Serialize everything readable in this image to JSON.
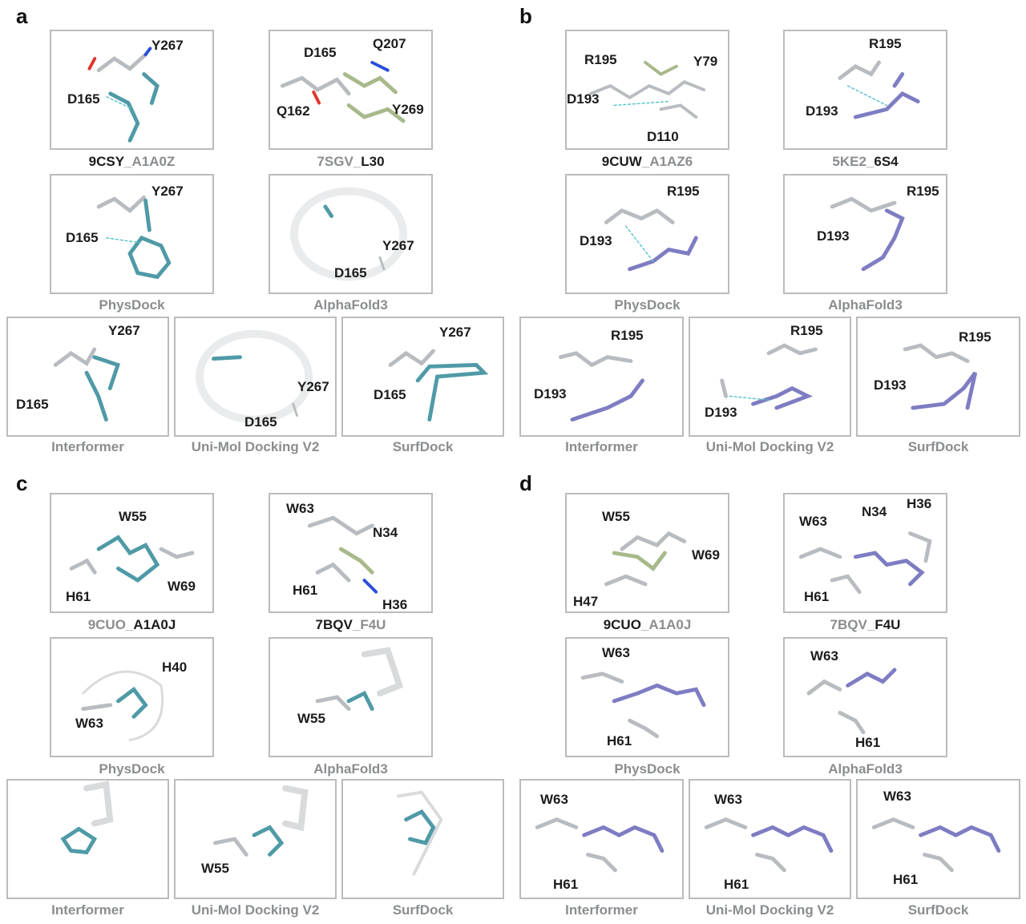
{
  "labels": {
    "a": "a",
    "b": "b",
    "c": "c",
    "d": "d"
  },
  "colors": {
    "teal": "#4f9aa6",
    "violet": "#7e7cc2",
    "olive": "#a8b98a",
    "grey_stick": "#9aa0a5",
    "blue_n": "#2a4ddb",
    "red_o": "#e0362c"
  },
  "a": {
    "p1": {
      "cap_a": "9CSY",
      "cap_b": "A1A0Z",
      "r": [
        "Y267",
        "D165"
      ]
    },
    "p2": {
      "cap_a": "7SGV",
      "cap_b": "L30",
      "r": [
        "D165",
        "Q207",
        "Q162",
        "Y269"
      ]
    },
    "p3": {
      "cap": "PhysDock",
      "r": [
        "Y267",
        "D165"
      ]
    },
    "p4": {
      "cap": "AlphaFold3",
      "r": [
        "Y267",
        "D165"
      ]
    },
    "p5": {
      "cap": "Interformer",
      "r": [
        "Y267",
        "D165"
      ]
    },
    "p6": {
      "cap": "Uni-Mol Docking V2",
      "r": [
        "Y267",
        "D165"
      ]
    },
    "p7": {
      "cap": "SurfDock",
      "r": [
        "Y267",
        "D165"
      ]
    }
  },
  "b": {
    "p1": {
      "cap_a": "9CUW",
      "cap_b": "A1AZ6",
      "r": [
        "R195",
        "Y79",
        "D193",
        "D110"
      ]
    },
    "p2": {
      "cap_a": "5KE2",
      "cap_b": "6S4",
      "r": [
        "R195",
        "D193"
      ]
    },
    "p3": {
      "cap": "PhysDock",
      "r": [
        "R195",
        "D193"
      ]
    },
    "p4": {
      "cap": "AlphaFold3",
      "r": [
        "R195",
        "D193"
      ]
    },
    "p5": {
      "cap": "Interformer",
      "r": [
        "R195",
        "D193"
      ]
    },
    "p6": {
      "cap": "Uni-Mol Docking V2",
      "r": [
        "R195",
        "D193"
      ]
    },
    "p7": {
      "cap": "SurfDock",
      "r": [
        "R195",
        "D193"
      ]
    }
  },
  "c": {
    "p1": {
      "cap_a": "9CUO",
      "cap_b": "A1A0J",
      "r": [
        "W55",
        "H61",
        "W69"
      ]
    },
    "p2": {
      "cap_a": "7BQV",
      "cap_b": "F4U",
      "r": [
        "W63",
        "N34",
        "H61",
        "H36"
      ]
    },
    "p3": {
      "cap": "PhysDock",
      "r": [
        "H40",
        "W63"
      ]
    },
    "p4": {
      "cap": "AlphaFold3",
      "r": [
        "W55"
      ]
    },
    "p5": {
      "cap": "Interformer",
      "r": []
    },
    "p6": {
      "cap": "Uni-Mol Docking V2",
      "r": [
        "W55"
      ]
    },
    "p7": {
      "cap": "SurfDock",
      "r": []
    }
  },
  "d": {
    "p1": {
      "cap_a": "9CUO",
      "cap_b": "A1A0J",
      "r": [
        "W55",
        "W69",
        "H47"
      ]
    },
    "p2": {
      "cap_a": "7BQV",
      "cap_b": "F4U",
      "r": [
        "W63",
        "N34",
        "H36",
        "H61"
      ]
    },
    "p3": {
      "cap": "PhysDock",
      "r": [
        "W63",
        "H61"
      ]
    },
    "p4": {
      "cap": "AlphaFold3",
      "r": [
        "W63",
        "H61"
      ]
    },
    "p5": {
      "cap": "Interformer",
      "r": [
        "W63",
        "H61"
      ]
    },
    "p6": {
      "cap": "Uni-Mol Docking V2",
      "r": [
        "W63",
        "H61"
      ]
    },
    "p7": {
      "cap": "SurfDock",
      "r": [
        "W63",
        "H61"
      ]
    }
  }
}
